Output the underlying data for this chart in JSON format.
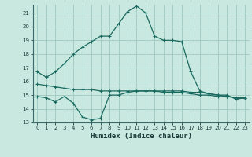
{
  "x": [
    0,
    1,
    2,
    3,
    4,
    5,
    6,
    7,
    8,
    9,
    10,
    11,
    12,
    13,
    14,
    15,
    16,
    17,
    18,
    19,
    20,
    21,
    22,
    23
  ],
  "line1": [
    16.7,
    16.3,
    16.7,
    17.3,
    18.0,
    18.5,
    18.9,
    19.3,
    19.3,
    20.2,
    21.1,
    21.5,
    21.0,
    19.3,
    19.0,
    19.0,
    18.9,
    16.7,
    15.3,
    15.1,
    15.0,
    14.9,
    14.8,
    14.8
  ],
  "line2": [
    15.8,
    15.7,
    15.6,
    15.5,
    15.4,
    15.4,
    15.4,
    15.3,
    15.3,
    15.3,
    15.3,
    15.3,
    15.3,
    15.3,
    15.2,
    15.2,
    15.2,
    15.1,
    15.0,
    15.0,
    14.9,
    14.9,
    14.8,
    14.8
  ],
  "line3": [
    14.9,
    14.8,
    14.5,
    14.9,
    14.4,
    13.4,
    13.2,
    13.3,
    15.0,
    15.0,
    15.2,
    15.3,
    15.3,
    15.3,
    15.3,
    15.3,
    15.3,
    15.2,
    15.2,
    15.1,
    15.0,
    15.0,
    14.7,
    14.8
  ],
  "bg_color": "#c8e8e0",
  "grid_color": "#a0c8c0",
  "line_color": "#1a6a60",
  "xlim": [
    -0.5,
    23.5
  ],
  "ylim": [
    13,
    21.6
  ],
  "yticks": [
    13,
    14,
    15,
    16,
    17,
    18,
    19,
    20,
    21
  ],
  "xticks": [
    0,
    1,
    2,
    3,
    4,
    5,
    6,
    7,
    8,
    9,
    10,
    11,
    12,
    13,
    14,
    15,
    16,
    17,
    18,
    19,
    20,
    21,
    22,
    23
  ],
  "xlabel": "Humidex (Indice chaleur)",
  "markersize": 2.0,
  "linewidth": 0.9,
  "tick_fontsize": 5.0,
  "xlabel_fontsize": 6.5
}
